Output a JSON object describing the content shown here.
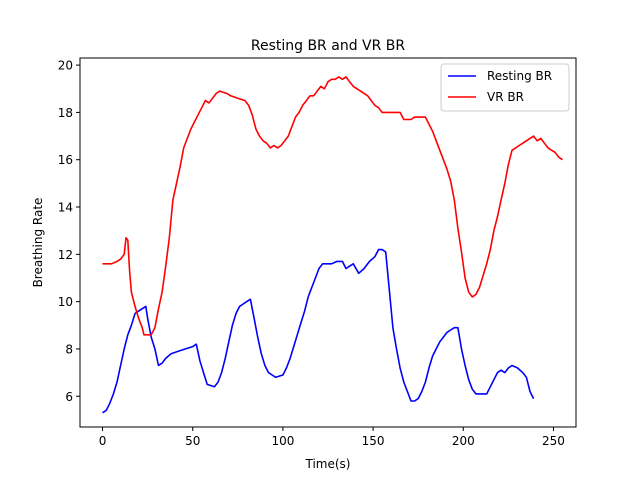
{
  "chart_data": {
    "type": "line",
    "title": "Resting BR and VR BR",
    "xlabel": "Time(s)",
    "ylabel": "Breathing Rate",
    "xlim": [
      -12.5,
      262.5
    ],
    "ylim": [
      4.7,
      20.3
    ],
    "xticks": [
      0,
      50,
      100,
      150,
      200,
      250
    ],
    "yticks": [
      6,
      8,
      10,
      12,
      14,
      16,
      18,
      20
    ],
    "grid": false,
    "legend_position": "upper-right",
    "series": [
      {
        "name": "Resting BR",
        "color": "#0000ff",
        "points": [
          [
            0,
            5.3
          ],
          [
            2,
            5.4
          ],
          [
            4,
            5.7
          ],
          [
            6,
            6.1
          ],
          [
            8,
            6.6
          ],
          [
            10,
            7.3
          ],
          [
            12,
            8.0
          ],
          [
            14,
            8.6
          ],
          [
            16,
            9.0
          ],
          [
            18,
            9.5
          ],
          [
            20,
            9.6
          ],
          [
            22,
            9.7
          ],
          [
            24,
            9.8
          ],
          [
            25,
            9.3
          ],
          [
            27,
            8.5
          ],
          [
            29,
            8.0
          ],
          [
            31,
            7.3
          ],
          [
            33,
            7.4
          ],
          [
            35,
            7.6
          ],
          [
            38,
            7.8
          ],
          [
            42,
            7.9
          ],
          [
            46,
            8.0
          ],
          [
            50,
            8.1
          ],
          [
            52,
            8.2
          ],
          [
            54,
            7.5
          ],
          [
            56,
            7.0
          ],
          [
            58,
            6.5
          ],
          [
            62,
            6.4
          ],
          [
            64,
            6.6
          ],
          [
            66,
            7.0
          ],
          [
            68,
            7.6
          ],
          [
            70,
            8.3
          ],
          [
            72,
            9.0
          ],
          [
            74,
            9.5
          ],
          [
            76,
            9.8
          ],
          [
            78,
            9.9
          ],
          [
            80,
            10.0
          ],
          [
            82,
            10.1
          ],
          [
            84,
            9.3
          ],
          [
            86,
            8.5
          ],
          [
            88,
            7.8
          ],
          [
            90,
            7.3
          ],
          [
            92,
            7.0
          ],
          [
            94,
            6.9
          ],
          [
            96,
            6.8
          ],
          [
            100,
            6.9
          ],
          [
            102,
            7.2
          ],
          [
            104,
            7.6
          ],
          [
            106,
            8.1
          ],
          [
            108,
            8.6
          ],
          [
            110,
            9.1
          ],
          [
            112,
            9.6
          ],
          [
            114,
            10.2
          ],
          [
            116,
            10.6
          ],
          [
            118,
            11.0
          ],
          [
            120,
            11.4
          ],
          [
            122,
            11.6
          ],
          [
            127,
            11.6
          ],
          [
            130,
            11.7
          ],
          [
            133,
            11.7
          ],
          [
            135,
            11.4
          ],
          [
            137,
            11.5
          ],
          [
            139,
            11.6
          ],
          [
            142,
            11.2
          ],
          [
            145,
            11.4
          ],
          [
            148,
            11.7
          ],
          [
            151,
            11.9
          ],
          [
            153,
            12.2
          ],
          [
            155,
            12.2
          ],
          [
            157,
            12.1
          ],
          [
            159,
            10.5
          ],
          [
            161,
            8.9
          ],
          [
            163,
            8.0
          ],
          [
            165,
            7.2
          ],
          [
            167,
            6.6
          ],
          [
            169,
            6.2
          ],
          [
            171,
            5.8
          ],
          [
            173,
            5.8
          ],
          [
            175,
            5.9
          ],
          [
            177,
            6.2
          ],
          [
            179,
            6.6
          ],
          [
            181,
            7.2
          ],
          [
            183,
            7.7
          ],
          [
            185,
            8.0
          ],
          [
            187,
            8.3
          ],
          [
            189,
            8.5
          ],
          [
            191,
            8.7
          ],
          [
            193,
            8.8
          ],
          [
            195,
            8.9
          ],
          [
            197,
            8.9
          ],
          [
            199,
            8.0
          ],
          [
            201,
            7.3
          ],
          [
            203,
            6.7
          ],
          [
            205,
            6.3
          ],
          [
            207,
            6.1
          ],
          [
            213,
            6.1
          ],
          [
            215,
            6.4
          ],
          [
            217,
            6.7
          ],
          [
            219,
            7.0
          ],
          [
            221,
            7.1
          ],
          [
            223,
            7.0
          ],
          [
            225,
            7.2
          ],
          [
            227,
            7.3
          ],
          [
            230,
            7.2
          ],
          [
            233,
            7.0
          ],
          [
            235,
            6.8
          ],
          [
            237,
            6.2
          ],
          [
            239,
            5.9
          ]
        ]
      },
      {
        "name": "VR BR",
        "color": "#ff0000",
        "points": [
          [
            0,
            11.6
          ],
          [
            5,
            11.6
          ],
          [
            8,
            11.7
          ],
          [
            10,
            11.8
          ],
          [
            12,
            12.0
          ],
          [
            13,
            12.7
          ],
          [
            14,
            12.6
          ],
          [
            15,
            11.3
          ],
          [
            16,
            10.4
          ],
          [
            18,
            9.8
          ],
          [
            20,
            9.3
          ],
          [
            22,
            8.9
          ],
          [
            23,
            8.6
          ],
          [
            27,
            8.6
          ],
          [
            29,
            8.9
          ],
          [
            31,
            9.7
          ],
          [
            33,
            10.4
          ],
          [
            35,
            11.5
          ],
          [
            37,
            12.7
          ],
          [
            39,
            14.3
          ],
          [
            41,
            15.0
          ],
          [
            43,
            15.7
          ],
          [
            45,
            16.5
          ],
          [
            47,
            16.9
          ],
          [
            49,
            17.3
          ],
          [
            51,
            17.6
          ],
          [
            53,
            17.9
          ],
          [
            55,
            18.2
          ],
          [
            57,
            18.5
          ],
          [
            59,
            18.4
          ],
          [
            61,
            18.6
          ],
          [
            63,
            18.8
          ],
          [
            65,
            18.9
          ],
          [
            69,
            18.8
          ],
          [
            71,
            18.7
          ],
          [
            75,
            18.6
          ],
          [
            79,
            18.5
          ],
          [
            81,
            18.3
          ],
          [
            83,
            17.9
          ],
          [
            85,
            17.3
          ],
          [
            87,
            17.0
          ],
          [
            89,
            16.8
          ],
          [
            91,
            16.7
          ],
          [
            93,
            16.5
          ],
          [
            95,
            16.6
          ],
          [
            97,
            16.5
          ],
          [
            99,
            16.6
          ],
          [
            101,
            16.8
          ],
          [
            103,
            17.0
          ],
          [
            105,
            17.4
          ],
          [
            107,
            17.8
          ],
          [
            109,
            18.0
          ],
          [
            111,
            18.3
          ],
          [
            113,
            18.5
          ],
          [
            115,
            18.7
          ],
          [
            117,
            18.7
          ],
          [
            119,
            18.9
          ],
          [
            121,
            19.1
          ],
          [
            123,
            19.0
          ],
          [
            125,
            19.3
          ],
          [
            127,
            19.4
          ],
          [
            129,
            19.4
          ],
          [
            131,
            19.5
          ],
          [
            133,
            19.4
          ],
          [
            135,
            19.5
          ],
          [
            137,
            19.3
          ],
          [
            139,
            19.1
          ],
          [
            143,
            18.9
          ],
          [
            147,
            18.7
          ],
          [
            149,
            18.5
          ],
          [
            151,
            18.3
          ],
          [
            153,
            18.2
          ],
          [
            155,
            18.0
          ],
          [
            165,
            18.0
          ],
          [
            167,
            17.7
          ],
          [
            171,
            17.7
          ],
          [
            173,
            17.8
          ],
          [
            179,
            17.8
          ],
          [
            181,
            17.5
          ],
          [
            183,
            17.2
          ],
          [
            185,
            16.8
          ],
          [
            187,
            16.4
          ],
          [
            189,
            16.0
          ],
          [
            191,
            15.6
          ],
          [
            193,
            15.1
          ],
          [
            195,
            14.3
          ],
          [
            197,
            13.1
          ],
          [
            199,
            12.1
          ],
          [
            201,
            11.0
          ],
          [
            203,
            10.4
          ],
          [
            205,
            10.2
          ],
          [
            207,
            10.3
          ],
          [
            209,
            10.6
          ],
          [
            211,
            11.1
          ],
          [
            213,
            11.6
          ],
          [
            215,
            12.2
          ],
          [
            217,
            13.0
          ],
          [
            219,
            13.6
          ],
          [
            221,
            14.3
          ],
          [
            223,
            15.0
          ],
          [
            225,
            15.8
          ],
          [
            227,
            16.4
          ],
          [
            229,
            16.5
          ],
          [
            231,
            16.6
          ],
          [
            233,
            16.7
          ],
          [
            235,
            16.8
          ],
          [
            237,
            16.9
          ],
          [
            239,
            17.0
          ],
          [
            241,
            16.8
          ],
          [
            243,
            16.9
          ],
          [
            245,
            16.7
          ],
          [
            247,
            16.5
          ],
          [
            249,
            16.4
          ],
          [
            251,
            16.3
          ],
          [
            253,
            16.1
          ],
          [
            255,
            16.0
          ]
        ]
      }
    ]
  }
}
